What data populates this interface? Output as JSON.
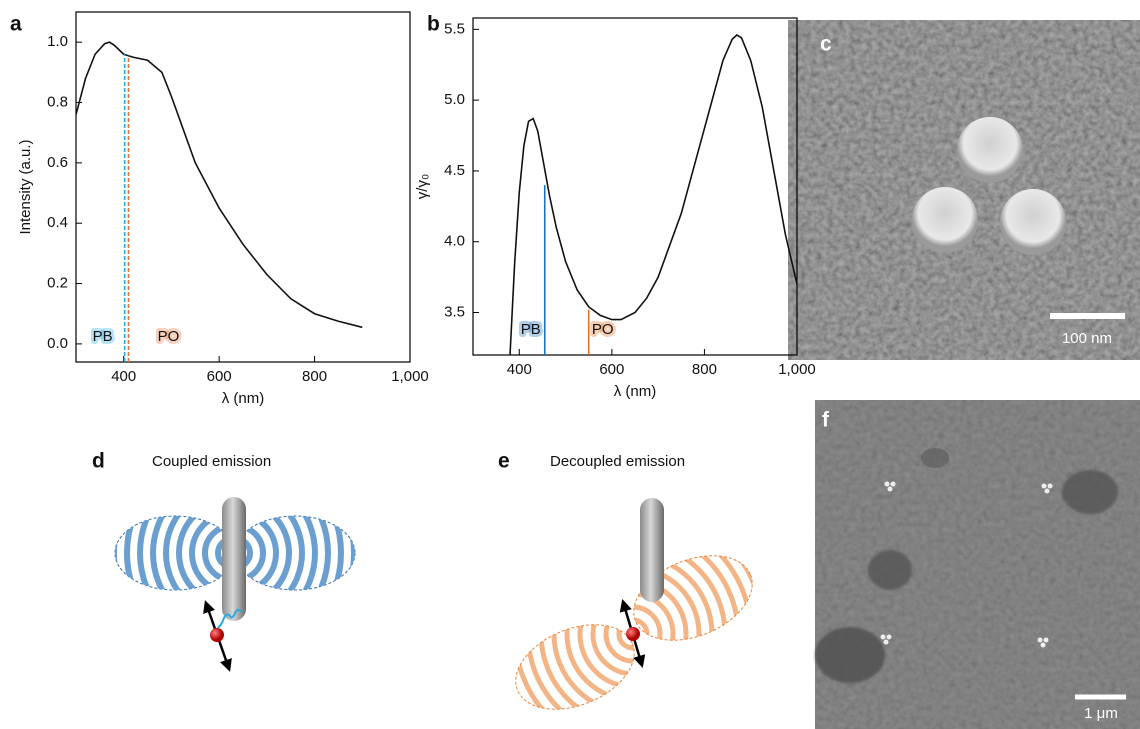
{
  "chart_data": [
    {
      "type": "line",
      "panel": "a",
      "ylabel": "Intensity (a.u.)",
      "xlabel": "λ (nm)",
      "color": "#111111",
      "x": [
        300,
        320,
        340,
        360,
        370,
        380,
        400,
        420,
        450,
        480,
        500,
        550,
        600,
        650,
        700,
        750,
        800,
        850,
        900
      ],
      "values": [
        0.76,
        0.88,
        0.96,
        0.995,
        1.0,
        0.99,
        0.96,
        0.95,
        0.94,
        0.9,
        0.82,
        0.6,
        0.45,
        0.33,
        0.23,
        0.15,
        0.1,
        0.075,
        0.055
      ],
      "xlim": [
        300,
        1000
      ],
      "ylim": [
        -0.06,
        1.1
      ],
      "xticks": [
        400,
        600,
        800,
        {
          "value": 1000,
          "label": "1,000"
        }
      ],
      "yticks": [
        {
          "value": 0,
          "label": "0.0"
        },
        0.2,
        0.4,
        0.6,
        0.8,
        {
          "value": 1,
          "label": "1.0"
        }
      ],
      "vlines": [
        {
          "x": 402,
          "top": 0.96,
          "label": "PB",
          "color": "#29abe2"
        },
        {
          "x": 410,
          "top": 0.955,
          "label": "PO",
          "color": "#e8743b"
        }
      ]
    },
    {
      "type": "line",
      "panel": "b",
      "ylabel": "γ/γ₀",
      "xlabel": "λ (nm)",
      "color": "#111111",
      "x": [
        380,
        390,
        400,
        410,
        420,
        430,
        440,
        450,
        465,
        480,
        500,
        525,
        550,
        575,
        600,
        620,
        650,
        675,
        700,
        750,
        800,
        840,
        860,
        870,
        880,
        900,
        925,
        950,
        975,
        1000
      ],
      "values": [
        3.2,
        3.85,
        4.35,
        4.68,
        4.85,
        4.87,
        4.78,
        4.6,
        4.33,
        4.1,
        3.86,
        3.66,
        3.54,
        3.48,
        3.45,
        3.45,
        3.5,
        3.6,
        3.75,
        4.2,
        4.8,
        5.28,
        5.43,
        5.46,
        5.44,
        5.28,
        4.95,
        4.5,
        4.05,
        3.7
      ],
      "xlim": [
        300,
        1000
      ],
      "ylim": [
        3.2,
        5.58
      ],
      "xticks": [
        400,
        600,
        800,
        {
          "value": 1000,
          "label": "1,000"
        }
      ],
      "yticks": [
        3.5,
        {
          "value": 4,
          "label": "4.0"
        },
        4.5,
        {
          "value": 5,
          "label": "5.0"
        },
        5.5
      ],
      "vlines": [
        {
          "x": 455,
          "top": 4.4,
          "label": "PB",
          "color": "#1f6fc0"
        },
        {
          "x": 550,
          "top": 3.52,
          "label": "PO",
          "color": "#e07020"
        }
      ]
    }
  ],
  "panels": {
    "c": {
      "label": "c",
      "scale_bar": "100 nm"
    },
    "d": {
      "label": "d",
      "title": "Coupled emission"
    },
    "e": {
      "label": "e",
      "title": "Decoupled emission"
    },
    "f": {
      "label": "f",
      "scale_bar": "1 μm"
    }
  }
}
